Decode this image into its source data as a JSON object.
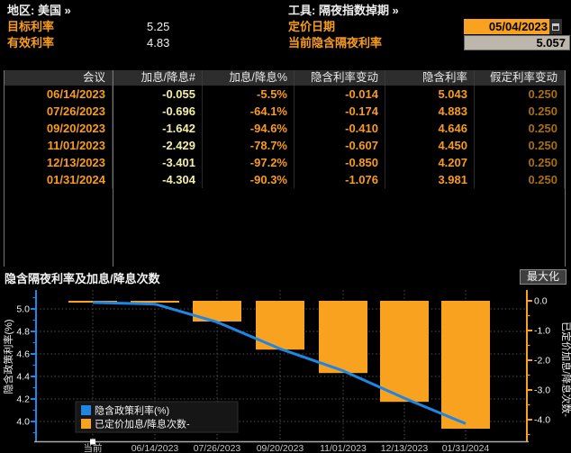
{
  "header": {
    "left": {
      "region": "地区: 美国 »",
      "target_rate_label": "目标利率",
      "target_rate_value": "5.25",
      "effective_rate_label": "有效利率",
      "effective_rate_value": "4.83"
    },
    "right": {
      "tool": "工具: 隔夜指数掉期 »",
      "pricing_date_label": "定价日期",
      "pricing_date_value": "05/04/2023",
      "implied_overnight_label": "当前隐含隔夜利率",
      "implied_overnight_value": "5.057"
    }
  },
  "table": {
    "columns": [
      "会议",
      "加息/降息#",
      "加息/降息%",
      "隐含利率变动",
      "隐含利率",
      "假定利率变动"
    ],
    "rows": [
      [
        "06/14/2023",
        "-0.055",
        "-5.5%",
        "-0.014",
        "5.043",
        "0.250"
      ],
      [
        "07/26/2023",
        "-0.696",
        "-64.1%",
        "-0.174",
        "4.883",
        "0.250"
      ],
      [
        "09/20/2023",
        "-1.642",
        "-94.6%",
        "-0.410",
        "4.646",
        "0.250"
      ],
      [
        "11/01/2023",
        "-2.429",
        "-78.7%",
        "-0.607",
        "4.450",
        "0.250"
      ],
      [
        "12/13/2023",
        "-3.401",
        "-97.2%",
        "-0.850",
        "4.207",
        "0.250"
      ],
      [
        "01/31/2024",
        "-4.304",
        "-90.3%",
        "-1.076",
        "3.981",
        "0.250"
      ]
    ]
  },
  "chart": {
    "title": "隐含隔夜利率及加息/降息次数",
    "maximize_label": "最大化"
  },
  "chart_data": {
    "type": "combo",
    "x": [
      "当前",
      "06/14/2023",
      "07/26/2023",
      "09/20/2023",
      "11/01/2023",
      "12/13/2023",
      "01/31/2024"
    ],
    "series": [
      {
        "name": "隐含政策利率(%)",
        "type": "line",
        "axis": "left",
        "color": "#1E87E5",
        "values": [
          5.057,
          5.043,
          4.883,
          4.646,
          4.45,
          4.207,
          3.981
        ]
      },
      {
        "name": "已定价加息/降息次数-",
        "type": "bar",
        "axis": "right",
        "color": "#F9A21F",
        "values": [
          0.0,
          -0.055,
          -0.696,
          -1.642,
          -2.429,
          -3.401,
          -4.304
        ]
      }
    ],
    "left_axis": {
      "label": "隐含政策利率(%)",
      "ticks": [
        5.0,
        4.8,
        4.6,
        4.4,
        4.2,
        4.0
      ],
      "range": [
        3.82,
        5.17
      ]
    },
    "right_axis": {
      "label": "已定价加息/降息次数-",
      "ticks": [
        0.0,
        -1.0,
        -2.0,
        -3.0,
        -4.0
      ],
      "range": [
        -4.73,
        0.36
      ]
    },
    "grid": "dotted",
    "legend_position": "bottom-left",
    "current_marker_x": "当前"
  },
  "colors": {
    "accent_orange": "#F89C1C",
    "pale_yellow": "#F3EFA2",
    "dim_orange": "#A8700E",
    "line_blue": "#1E87E5",
    "bar_orange": "#F9A21F",
    "input_orange_bg": "#F9A21F",
    "input_gray_bg": "#BDB6AA",
    "table_header_bg": "#2D2D2D"
  }
}
